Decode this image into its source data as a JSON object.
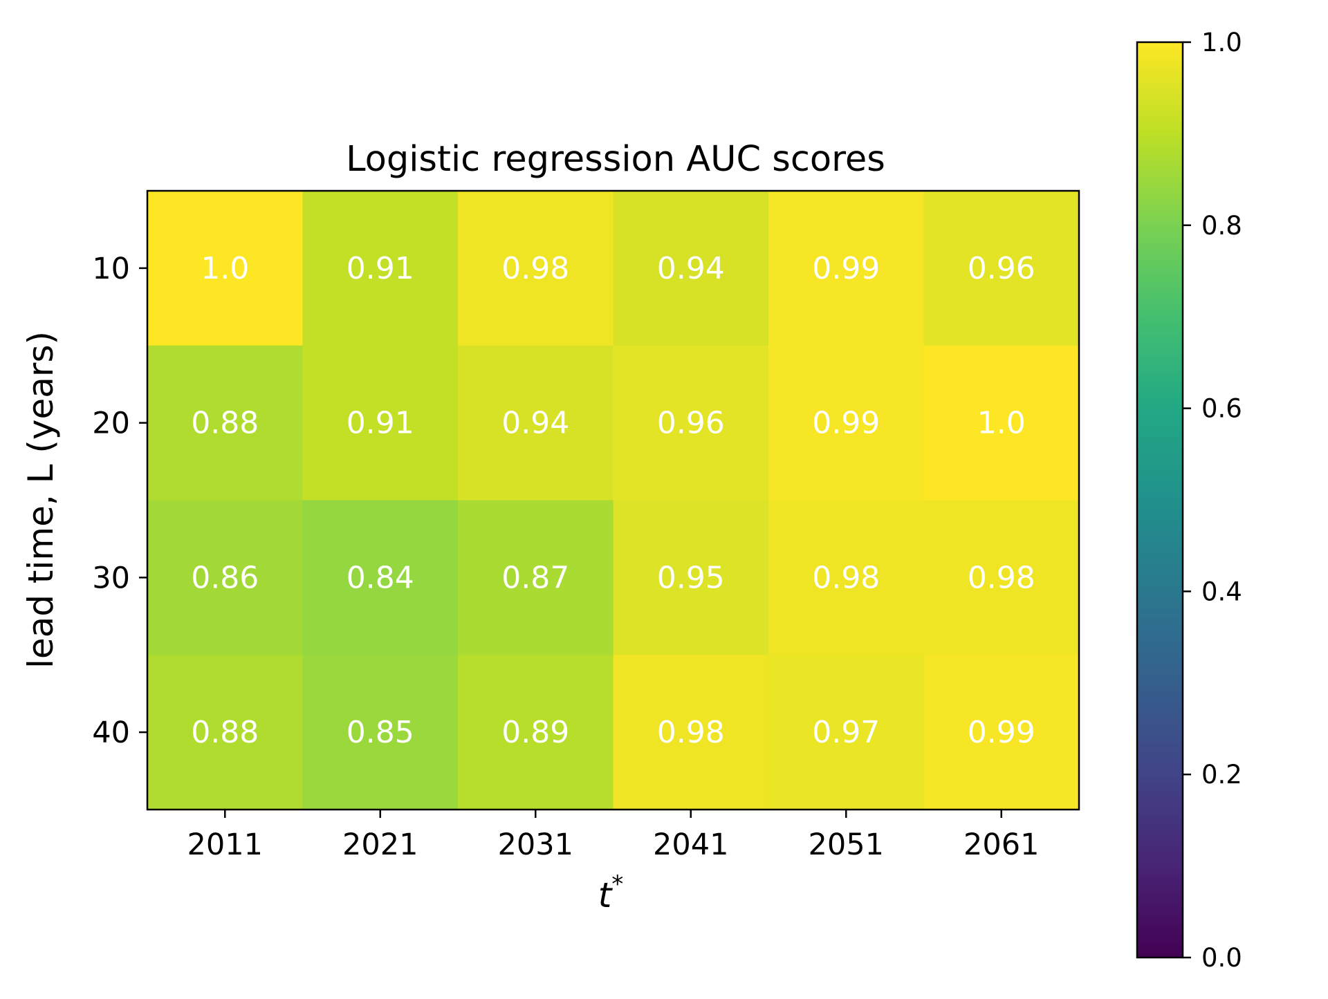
{
  "chart_data": {
    "type": "heatmap",
    "title": "Logistic regression AUC scores",
    "xlabel_base": "t",
    "xlabel_sup": "*",
    "ylabel": "lead time, L (years)",
    "x_categories": [
      "2011",
      "2021",
      "2031",
      "2041",
      "2051",
      "2061"
    ],
    "y_categories": [
      "10",
      "20",
      "30",
      "40"
    ],
    "values": [
      [
        1.0,
        0.91,
        0.98,
        0.94,
        0.99,
        0.96
      ],
      [
        0.88,
        0.91,
        0.94,
        0.96,
        0.99,
        1.0
      ],
      [
        0.86,
        0.84,
        0.87,
        0.95,
        0.98,
        0.98
      ],
      [
        0.88,
        0.85,
        0.89,
        0.98,
        0.97,
        0.99
      ]
    ],
    "cell_labels": [
      [
        "1.0",
        "0.91",
        "0.98",
        "0.94",
        "0.99",
        "0.96"
      ],
      [
        "0.88",
        "0.91",
        "0.94",
        "0.96",
        "0.99",
        "1.0"
      ],
      [
        "0.86",
        "0.84",
        "0.87",
        "0.95",
        "0.98",
        "0.98"
      ],
      [
        "0.88",
        "0.85",
        "0.89",
        "0.98",
        "0.97",
        "0.99"
      ]
    ],
    "cell_label_color": "#ffffff",
    "colorbar": {
      "range": [
        0.0,
        1.0
      ],
      "ticks": [
        0.0,
        0.2,
        0.4,
        0.6,
        0.8,
        1.0
      ],
      "tick_labels": [
        "0.0",
        "0.2",
        "0.4",
        "0.6",
        "0.8",
        "1.0"
      ],
      "colormap": "viridis"
    }
  }
}
